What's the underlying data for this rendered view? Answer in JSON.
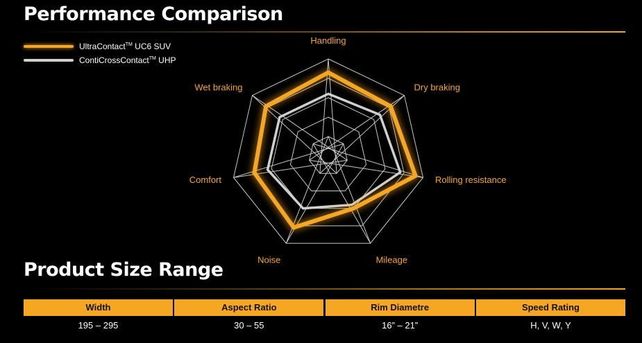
{
  "performance": {
    "title": "Performance Comparison"
  },
  "legend": [
    {
      "label": "UltraContact",
      "tm": "TM",
      "suffix": " UC6 SUV",
      "color": "#f5a623"
    },
    {
      "label": "ContiCrossContact",
      "tm": "TM",
      "suffix": " UHP",
      "color": "#d0d0d0"
    }
  ],
  "chart_data": {
    "type": "radar",
    "axes": [
      "Handling",
      "Dry braking",
      "Rolling resistance",
      "Mileage",
      "Noise",
      "Comfort",
      "Wet braking"
    ],
    "rmax": 5,
    "series": [
      {
        "name": "UltraContact™ UC6 SUV",
        "values": [
          4.3,
          4.1,
          4.6,
          3.0,
          4.1,
          3.9,
          4.1
        ],
        "color": "#f5a623"
      },
      {
        "name": "ContiCrossContact™ UHP",
        "values": [
          3.2,
          3.4,
          3.8,
          2.8,
          3.0,
          3.2,
          3.2
        ],
        "color": "#d0d0d0"
      }
    ],
    "grid_levels": 5,
    "legend_position": "top-left"
  },
  "size_range": {
    "title": "Product Size Range",
    "headers": [
      "Width",
      "Aspect Ratio",
      "Rim Diametre",
      "Speed Rating"
    ],
    "values": [
      "195 – 295",
      "30 – 55",
      "16” – 21”",
      "H, V, W, Y"
    ]
  }
}
